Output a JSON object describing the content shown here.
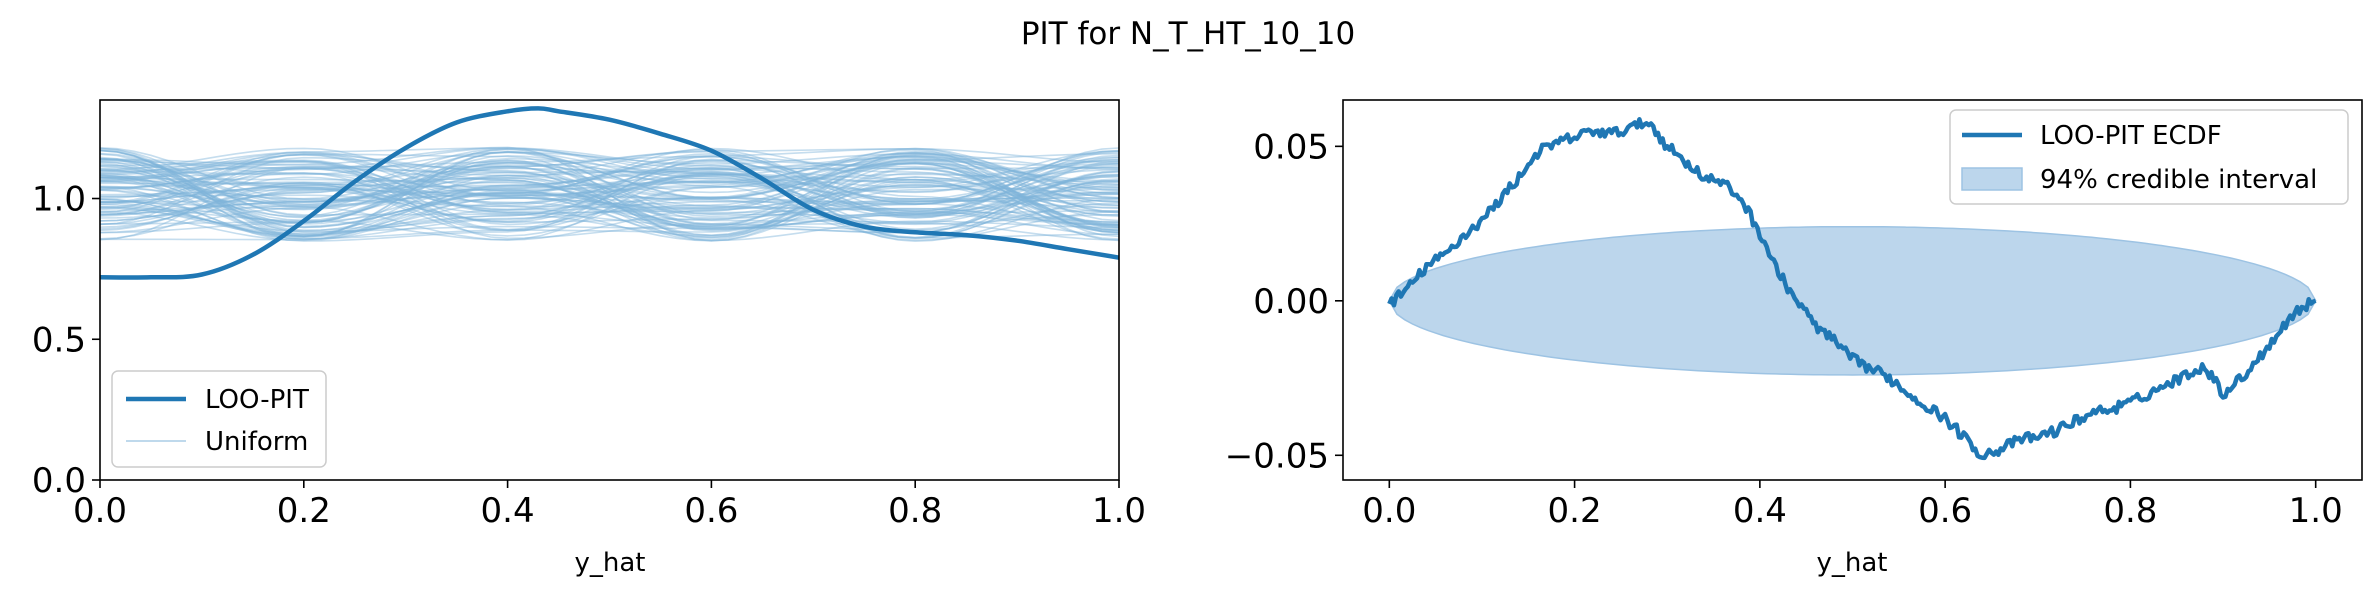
{
  "figure": {
    "title": "PIT for N_T_HT_10_10"
  },
  "colors": {
    "primary": "#1f77b4",
    "uniform": "#7fb3d9",
    "band_fill": "#bcd6ec",
    "band_edge": "#9dc3e3",
    "axes": "#000000"
  },
  "chart_data": [
    {
      "type": "line",
      "name": "left-panel",
      "xlabel": "y_hat",
      "ylabel": "",
      "xlim": [
        0.0,
        1.0
      ],
      "ylim": [
        0.0,
        1.35
      ],
      "xticks": [
        0.0,
        0.2,
        0.4,
        0.6,
        0.8,
        1.0
      ],
      "xtick_labels": [
        "0.0",
        "0.2",
        "0.4",
        "0.6",
        "0.8",
        "1.0"
      ],
      "yticks": [
        0.0,
        0.5,
        1.0
      ],
      "ytick_labels": [
        "0.0",
        "0.5",
        "1.0"
      ],
      "grid": false,
      "legend": {
        "position": "lower-left",
        "entries": [
          "LOO-PIT",
          "Uniform"
        ]
      },
      "series": [
        {
          "name": "LOO-PIT",
          "x": [
            0.0,
            0.05,
            0.1,
            0.15,
            0.2,
            0.25,
            0.3,
            0.35,
            0.4,
            0.43,
            0.45,
            0.5,
            0.55,
            0.6,
            0.65,
            0.7,
            0.75,
            0.8,
            0.85,
            0.9,
            0.95,
            1.0
          ],
          "y": [
            0.72,
            0.72,
            0.73,
            0.8,
            0.92,
            1.06,
            1.18,
            1.27,
            1.31,
            1.32,
            1.31,
            1.28,
            1.23,
            1.17,
            1.07,
            0.96,
            0.9,
            0.88,
            0.87,
            0.85,
            0.82,
            0.79
          ]
        },
        {
          "name": "Uniform",
          "description_count": 100,
          "y_range": [
            0.83,
            1.2
          ]
        }
      ]
    },
    {
      "type": "line",
      "name": "right-panel",
      "xlabel": "y_hat",
      "ylabel": "",
      "xlim": [
        -0.05,
        1.05
      ],
      "ylim": [
        -0.058,
        0.065
      ],
      "xticks": [
        0.0,
        0.2,
        0.4,
        0.6,
        0.8,
        1.0
      ],
      "xtick_labels": [
        "0.0",
        "0.2",
        "0.4",
        "0.6",
        "0.8",
        "1.0"
      ],
      "yticks": [
        0.05,
        0.0,
        -0.05
      ],
      "ytick_labels": [
        "0.05",
        "0.00",
        "−0.05"
      ],
      "grid": false,
      "legend": {
        "position": "top-right",
        "entries": [
          "LOO-PIT ECDF",
          "94% credible interval"
        ]
      },
      "series": [
        {
          "name": "LOO-PIT ECDF",
          "x": [
            0.0,
            0.02,
            0.04,
            0.06,
            0.08,
            0.1,
            0.12,
            0.14,
            0.16,
            0.18,
            0.2,
            0.22,
            0.24,
            0.26,
            0.28,
            0.3,
            0.32,
            0.34,
            0.36,
            0.38,
            0.4,
            0.42,
            0.44,
            0.46,
            0.48,
            0.5,
            0.52,
            0.54,
            0.56,
            0.58,
            0.6,
            0.62,
            0.64,
            0.66,
            0.68,
            0.7,
            0.72,
            0.74,
            0.76,
            0.78,
            0.8,
            0.82,
            0.84,
            0.86,
            0.88,
            0.9,
            0.92,
            0.94,
            0.96,
            0.98,
            1.0
          ],
          "y": [
            -0.001,
            0.004,
            0.011,
            0.015,
            0.021,
            0.026,
            0.033,
            0.04,
            0.048,
            0.051,
            0.053,
            0.055,
            0.054,
            0.056,
            0.058,
            0.05,
            0.045,
            0.04,
            0.038,
            0.033,
            0.022,
            0.009,
            0.0,
            -0.008,
            -0.013,
            -0.019,
            -0.022,
            -0.025,
            -0.03,
            -0.034,
            -0.038,
            -0.044,
            -0.05,
            -0.048,
            -0.045,
            -0.044,
            -0.042,
            -0.039,
            -0.036,
            -0.035,
            -0.033,
            -0.03,
            -0.027,
            -0.024,
            -0.021,
            -0.03,
            -0.025,
            -0.018,
            -0.01,
            -0.003,
            0.0
          ]
        },
        {
          "name": "94% credible interval",
          "x_range": [
            0.0,
            1.0
          ],
          "half_width_max": 0.024
        }
      ]
    }
  ]
}
